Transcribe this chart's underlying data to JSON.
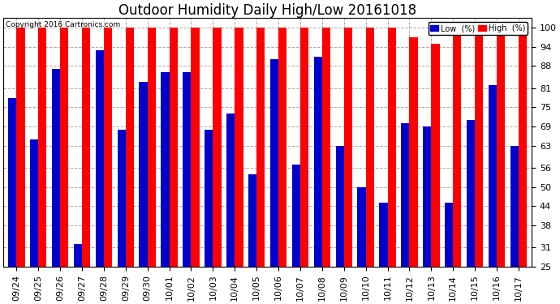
{
  "title": "Outdoor Humidity Daily High/Low 20161018",
  "copyright": "Copyright 2016 Cartronics.com",
  "dates": [
    "09/24",
    "09/25",
    "09/26",
    "09/27",
    "09/28",
    "09/29",
    "09/30",
    "10/01",
    "10/02",
    "10/03",
    "10/04",
    "10/05",
    "10/06",
    "10/07",
    "10/08",
    "10/09",
    "10/10",
    "10/11",
    "10/12",
    "10/13",
    "10/14",
    "10/15",
    "10/16",
    "10/17"
  ],
  "high": [
    100,
    100,
    100,
    100,
    100,
    100,
    100,
    100,
    100,
    100,
    100,
    100,
    100,
    100,
    100,
    100,
    100,
    100,
    97,
    95,
    100,
    100,
    100,
    100
  ],
  "low": [
    78,
    65,
    87,
    32,
    93,
    68,
    83,
    86,
    86,
    68,
    73,
    54,
    90,
    57,
    91,
    63,
    50,
    45,
    70,
    69,
    45,
    71,
    82,
    63
  ],
  "high_color": "#FF0000",
  "low_color": "#0000CC",
  "bg_color": "#FFFFFF",
  "grid_color": "#AAAAAA",
  "yticks": [
    25,
    31,
    38,
    44,
    50,
    56,
    63,
    69,
    75,
    81,
    88,
    94,
    100
  ],
  "ymin": 25,
  "ymax": 103,
  "bar_width": 0.38,
  "title_fontsize": 12,
  "tick_fontsize": 8,
  "legend_low_label": "Low  (%)",
  "legend_high_label": "High  (%)"
}
